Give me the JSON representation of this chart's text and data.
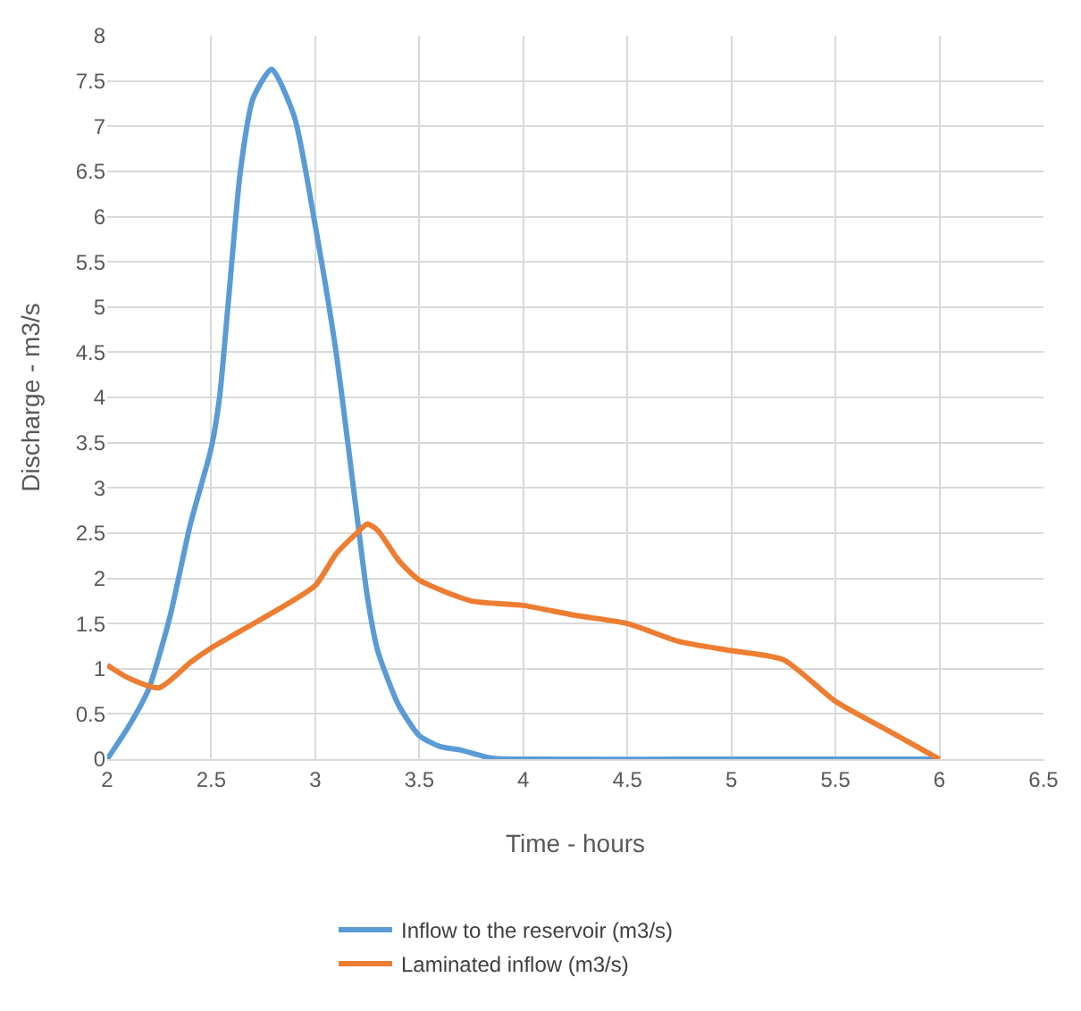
{
  "chart_data": {
    "type": "line",
    "xlabel": "Time - hours",
    "ylabel": "Discharge - m3/s",
    "xlim": [
      2,
      6.5
    ],
    "xticks": [
      2,
      2.5,
      3,
      3.5,
      4,
      4.5,
      5,
      5.5,
      6,
      6.5
    ],
    "ylim": [
      0,
      8
    ],
    "yticks": [
      0,
      0.5,
      1,
      1.5,
      2,
      2.5,
      3,
      3.5,
      4,
      4.5,
      5,
      5.5,
      6,
      6.5,
      7,
      7.5,
      8
    ],
    "grid": true,
    "legend": "bottom",
    "marker": "none",
    "line_style": "solid",
    "series": [
      {
        "name": "Inflow to the reservoir (m3/s)",
        "color": "#5b9bd5",
        "x": [
          2,
          2.1,
          2.2,
          2.3,
          2.4,
          2.5,
          2.54,
          2.58,
          2.64,
          2.7,
          2.79,
          2.9,
          3.0,
          3.1,
          3.2,
          3.25,
          3.3,
          3.4,
          3.5,
          3.6,
          3.7,
          3.85,
          4,
          5,
          6
        ],
        "values": [
          0,
          0.35,
          0.78,
          1.56,
          2.6,
          3.44,
          4,
          5,
          6.5,
          7.3,
          7.63,
          7.1,
          5.9,
          4.5,
          2.7,
          1.8,
          1.2,
          0.6,
          0.26,
          0.14,
          0.1,
          0.01,
          0,
          0,
          0
        ]
      },
      {
        "name": "Laminated inflow (m3/s)",
        "color": "#ed7d31",
        "x": [
          2,
          2.1,
          2.25,
          2.4,
          2.5,
          2.75,
          3.0,
          3.1,
          3.2,
          3.25,
          3.3,
          3.4,
          3.5,
          3.75,
          4.0,
          4.25,
          4.5,
          4.75,
          5.0,
          5.25,
          5.5,
          5.75,
          6.0
        ],
        "values": [
          1.04,
          0.9,
          0.79,
          1.07,
          1.23,
          1.56,
          1.92,
          2.27,
          2.5,
          2.6,
          2.53,
          2.2,
          1.98,
          1.75,
          1.7,
          1.59,
          1.5,
          1.3,
          1.2,
          1.1,
          0.64,
          0.32,
          0
        ]
      }
    ]
  }
}
